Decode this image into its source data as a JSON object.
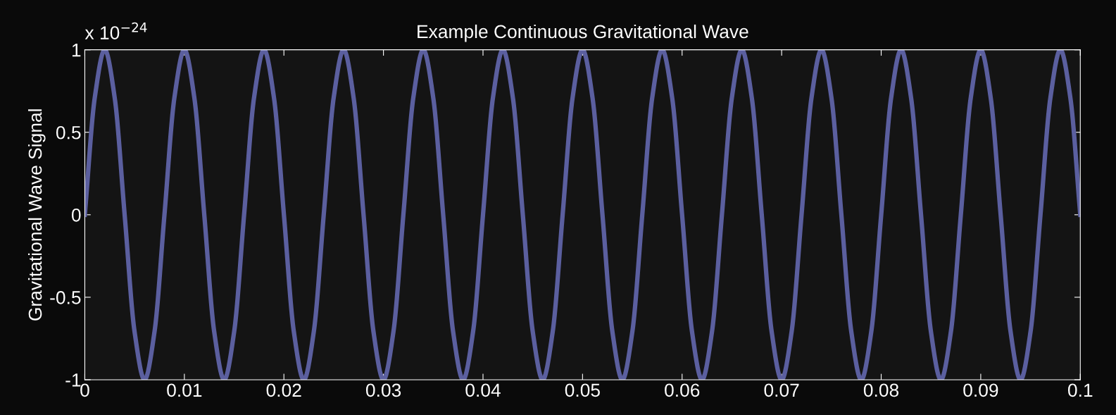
{
  "chart_data": {
    "type": "line",
    "title": "Example Continuous Gravitational Wave",
    "ylabel": "Gravitational Wave Signal",
    "annotations": [
      "x 10$^{−24}$"
    ],
    "x": [
      0,
      0.001,
      0.002,
      0.003,
      0.004,
      0.005,
      0.006,
      0.007,
      0.008,
      0.009,
      0.01,
      0.011,
      0.012,
      0.013,
      0.014,
      0.015,
      0.016,
      0.017,
      0.018,
      0.019,
      0.02,
      0.021,
      0.022,
      0.023,
      0.024,
      0.025,
      0.026,
      0.027,
      0.028,
      0.029,
      0.03,
      0.031,
      0.032,
      0.033,
      0.034,
      0.035,
      0.036,
      0.037,
      0.038,
      0.039,
      0.04,
      0.041,
      0.042,
      0.043,
      0.044,
      0.045,
      0.046,
      0.047,
      0.048,
      0.049,
      0.05,
      0.051,
      0.052,
      0.053,
      0.054,
      0.055,
      0.056,
      0.057,
      0.058,
      0.059,
      0.06,
      0.061,
      0.062,
      0.063,
      0.064,
      0.065,
      0.066,
      0.067,
      0.068,
      0.069,
      0.07,
      0.071,
      0.072,
      0.073,
      0.074,
      0.075,
      0.076,
      0.077,
      0.078,
      0.079,
      0.08,
      0.081,
      0.082,
      0.083,
      0.084,
      0.085,
      0.086,
      0.087,
      0.088,
      0.089,
      0.09,
      0.091,
      0.092,
      0.093,
      0.094,
      0.095,
      0.096,
      0.097,
      0.098,
      0.099,
      0.1
    ],
    "series": [
      {
        "color": "#5b5f9f",
        "values": [
          0,
          0.71,
          1,
          0.71,
          0,
          -0.71,
          -1,
          -0.71,
          0,
          0.71,
          1,
          0.71,
          0,
          -0.71,
          -1,
          -0.71,
          0,
          0.71,
          1,
          0.71,
          0,
          -0.71,
          -1,
          -0.71,
          0,
          0.71,
          1,
          0.71,
          0,
          -0.71,
          -1,
          -0.71,
          0,
          0.71,
          1,
          0.71,
          0,
          -0.71,
          -1,
          -0.71,
          0,
          0.71,
          1,
          0.71,
          0,
          -0.71,
          -1,
          -0.71,
          0,
          0.71,
          1,
          0.71,
          0,
          -0.71,
          -1,
          -0.71,
          0,
          0.71,
          1,
          0.71,
          0,
          -0.71,
          -1,
          -0.71,
          0,
          0.71,
          1,
          0.71,
          0,
          -0.71,
          -1,
          -0.71,
          0,
          0.71,
          1,
          0.71,
          0,
          -0.71,
          -1,
          -0.71,
          0,
          0.71,
          1,
          0.71,
          0,
          -0.71,
          -1,
          -0.71,
          0,
          0.71,
          1,
          0.71,
          0,
          -0.71,
          -1,
          -0.71,
          0,
          0.71,
          1,
          0.71,
          0
        ]
      }
    ],
    "xlim": [
      0,
      0.1
    ],
    "xticks": [
      0,
      0.01,
      0.02,
      0.03,
      0.04,
      0.05,
      0.06,
      0.07,
      0.08,
      0.09,
      0.1
    ],
    "ylim": [
      -1,
      1
    ],
    "yticks": [
      -1,
      -0.5,
      0,
      0.5,
      1
    ],
    "grid": false,
    "legend": false,
    "marker": "none",
    "line_style": "solid"
  }
}
